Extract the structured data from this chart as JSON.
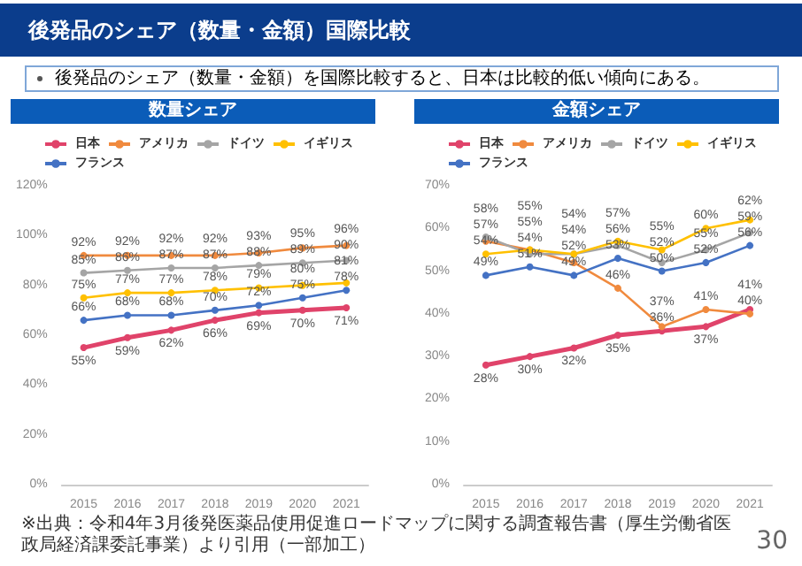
{
  "chart_data": [
    {
      "type": "line",
      "title": "数量シェア",
      "categories": [
        "2015",
        "2016",
        "2017",
        "2018",
        "2019",
        "2020",
        "2021"
      ],
      "annotations": [
        "後発品のシェア（数量・金額）国際比較",
        "後発品のシェア（数量・金額）を国際比較すると、日本は比較的低い傾向にある。"
      ],
      "series": [
        {
          "name": "日本",
          "color": "#e0436a",
          "values": [
            55,
            59,
            62,
            66,
            69,
            70,
            71
          ],
          "value_labels": [
            "55%",
            "59%",
            "62%",
            "66%",
            "69%",
            "70%",
            "71%"
          ]
        },
        {
          "name": "アメリカ",
          "color": "#f08a3e",
          "values": [
            92,
            92,
            92,
            92,
            93,
            95,
            96
          ],
          "value_labels": [
            "92%",
            "92%",
            "92%",
            "92%",
            "93%",
            "95%",
            "96%"
          ]
        },
        {
          "name": "ドイツ",
          "color": "#a5a5a5",
          "values": [
            85,
            86,
            87,
            87,
            88,
            89,
            90
          ],
          "value_labels": [
            "85%",
            "86%",
            "87%",
            "87%",
            "88%",
            "89%",
            "90%"
          ]
        },
        {
          "name": "イギリス",
          "color": "#ffc000",
          "values": [
            75,
            77,
            77,
            78,
            79,
            80,
            81
          ],
          "value_labels": [
            "75%",
            "77%",
            "77%",
            "78%",
            "79%",
            "80%",
            "81%"
          ]
        },
        {
          "name": "フランス",
          "color": "#4472c4",
          "values": [
            66,
            68,
            68,
            70,
            72,
            75,
            78
          ],
          "value_labels": [
            "66%",
            "68%",
            "68%",
            "70%",
            "72%",
            "75%",
            "78%"
          ]
        }
      ],
      "ylim": [
        0,
        120
      ],
      "yticks": [
        {
          "value": 0,
          "label": "0%"
        },
        {
          "value": 20,
          "label": "20%"
        },
        {
          "value": 40,
          "label": "40%"
        },
        {
          "value": 60,
          "label": "60%"
        },
        {
          "value": 80,
          "label": "80%"
        },
        {
          "value": 100,
          "label": "100%"
        },
        {
          "value": 120,
          "label": "120%"
        }
      ],
      "legend": "top",
      "marker": "circle",
      "line_style": "solid"
    },
    {
      "type": "line",
      "title": "金額シェア",
      "categories": [
        "2015",
        "2016",
        "2017",
        "2018",
        "2019",
        "2020",
        "2021"
      ],
      "annotations": [
        "※出典：令和4年3月後発医薬品使用促進ロードマップに関する調査報告書（厚生労働省医政局経済課委託事業）より引用（一部加工）",
        "30"
      ],
      "series": [
        {
          "name": "日本",
          "color": "#e0436a",
          "values": [
            28,
            30,
            32,
            35,
            36,
            37,
            41
          ],
          "value_labels": [
            "28%",
            "30%",
            "32%",
            "35%",
            "36%",
            "37%",
            "41%"
          ]
        },
        {
          "name": "アメリカ",
          "color": "#f08a3e",
          "values": [
            57,
            55,
            52,
            46,
            37,
            41,
            40
          ],
          "value_labels": [
            "57%",
            "55%",
            "52%",
            "46%",
            "37%",
            "41%",
            "40%"
          ]
        },
        {
          "name": "ドイツ",
          "color": "#a5a5a5",
          "values": [
            58,
            54,
            54,
            56,
            52,
            55,
            59
          ],
          "value_labels": [
            "58%",
            "54%",
            "54%",
            "56%",
            "52%",
            "55%",
            "59%"
          ]
        },
        {
          "name": "イギリス",
          "color": "#ffc000",
          "values": [
            54,
            55,
            54,
            57,
            55,
            60,
            62
          ],
          "value_labels": [
            "54%",
            "55%",
            "54%",
            "57%",
            "55%",
            "60%",
            "62%"
          ]
        },
        {
          "name": "フランス",
          "color": "#4472c4",
          "values": [
            49,
            51,
            49,
            53,
            50,
            52,
            56
          ],
          "value_labels": [
            "49%",
            "51%",
            "49%",
            "53%",
            "50%",
            "52%",
            "56%"
          ]
        }
      ],
      "ylim": [
        0,
        70
      ],
      "yticks": [
        {
          "value": 0,
          "label": "0%"
        },
        {
          "value": 10,
          "label": "10%"
        },
        {
          "value": 20,
          "label": "20%"
        },
        {
          "value": 30,
          "label": "30%"
        },
        {
          "value": 40,
          "label": "40%"
        },
        {
          "value": 50,
          "label": "50%"
        },
        {
          "value": 60,
          "label": "60%"
        },
        {
          "value": 70,
          "label": "70%"
        }
      ],
      "legend": "top",
      "marker": "circle",
      "line_style": "solid"
    }
  ]
}
